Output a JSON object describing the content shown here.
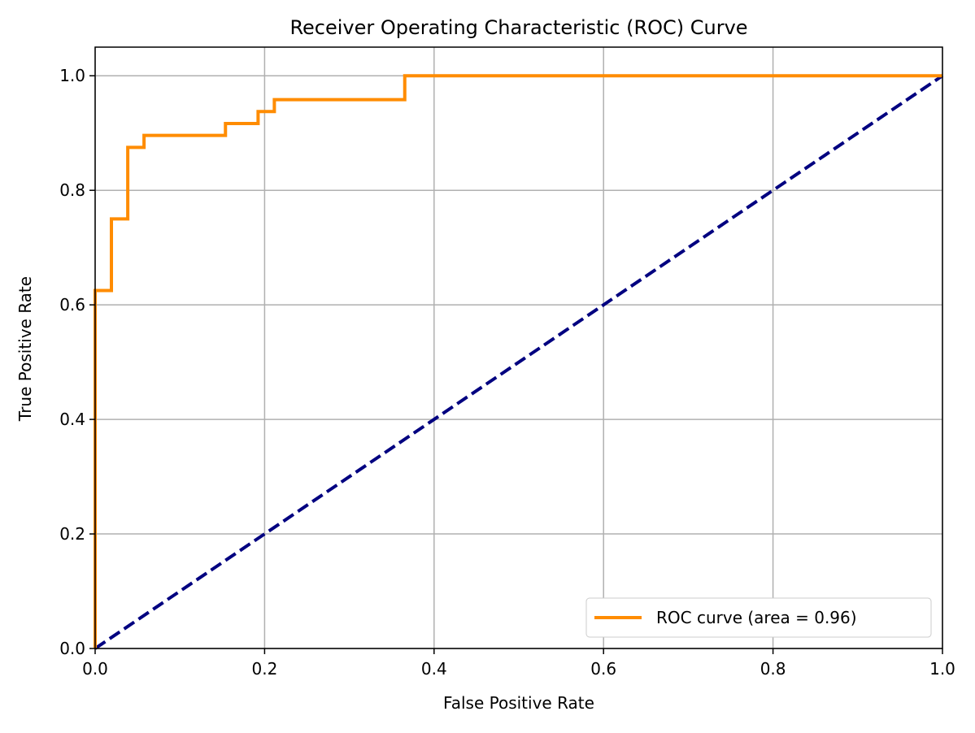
{
  "chart_data": {
    "type": "line",
    "title": "Receiver Operating Characteristic (ROC) Curve",
    "xlabel": "False Positive Rate",
    "ylabel": "True Positive Rate",
    "xlim": [
      0.0,
      1.0
    ],
    "ylim": [
      0.0,
      1.05
    ],
    "xticks": [
      0.0,
      0.2,
      0.4,
      0.6,
      0.8,
      1.0
    ],
    "xtick_labels": [
      "0.0",
      "0.2",
      "0.4",
      "0.6",
      "0.8",
      "1.0"
    ],
    "yticks": [
      0.0,
      0.2,
      0.4,
      0.6,
      0.8,
      1.0
    ],
    "ytick_labels": [
      "0.0",
      "0.2",
      "0.4",
      "0.6",
      "0.8",
      "1.0"
    ],
    "grid": true,
    "legend_position": "lower-right",
    "series": [
      {
        "name": "ROC curve (area = 0.96)",
        "color": "#ff8c00",
        "style": "solid",
        "x": [
          0.0,
          0.0,
          0.0192,
          0.0192,
          0.0385,
          0.0385,
          0.0577,
          0.0577,
          0.1538,
          0.1538,
          0.1923,
          0.1923,
          0.2115,
          0.2115,
          0.3654,
          0.3654,
          1.0
        ],
        "y": [
          0.0,
          0.625,
          0.625,
          0.75,
          0.75,
          0.875,
          0.875,
          0.8958,
          0.8958,
          0.9167,
          0.9167,
          0.9375,
          0.9375,
          0.9583,
          0.9583,
          1.0,
          1.0
        ]
      },
      {
        "color": "#000080",
        "style": "dashed",
        "x": [
          0.0,
          1.0
        ],
        "y": [
          0.0,
          1.0
        ]
      }
    ]
  }
}
